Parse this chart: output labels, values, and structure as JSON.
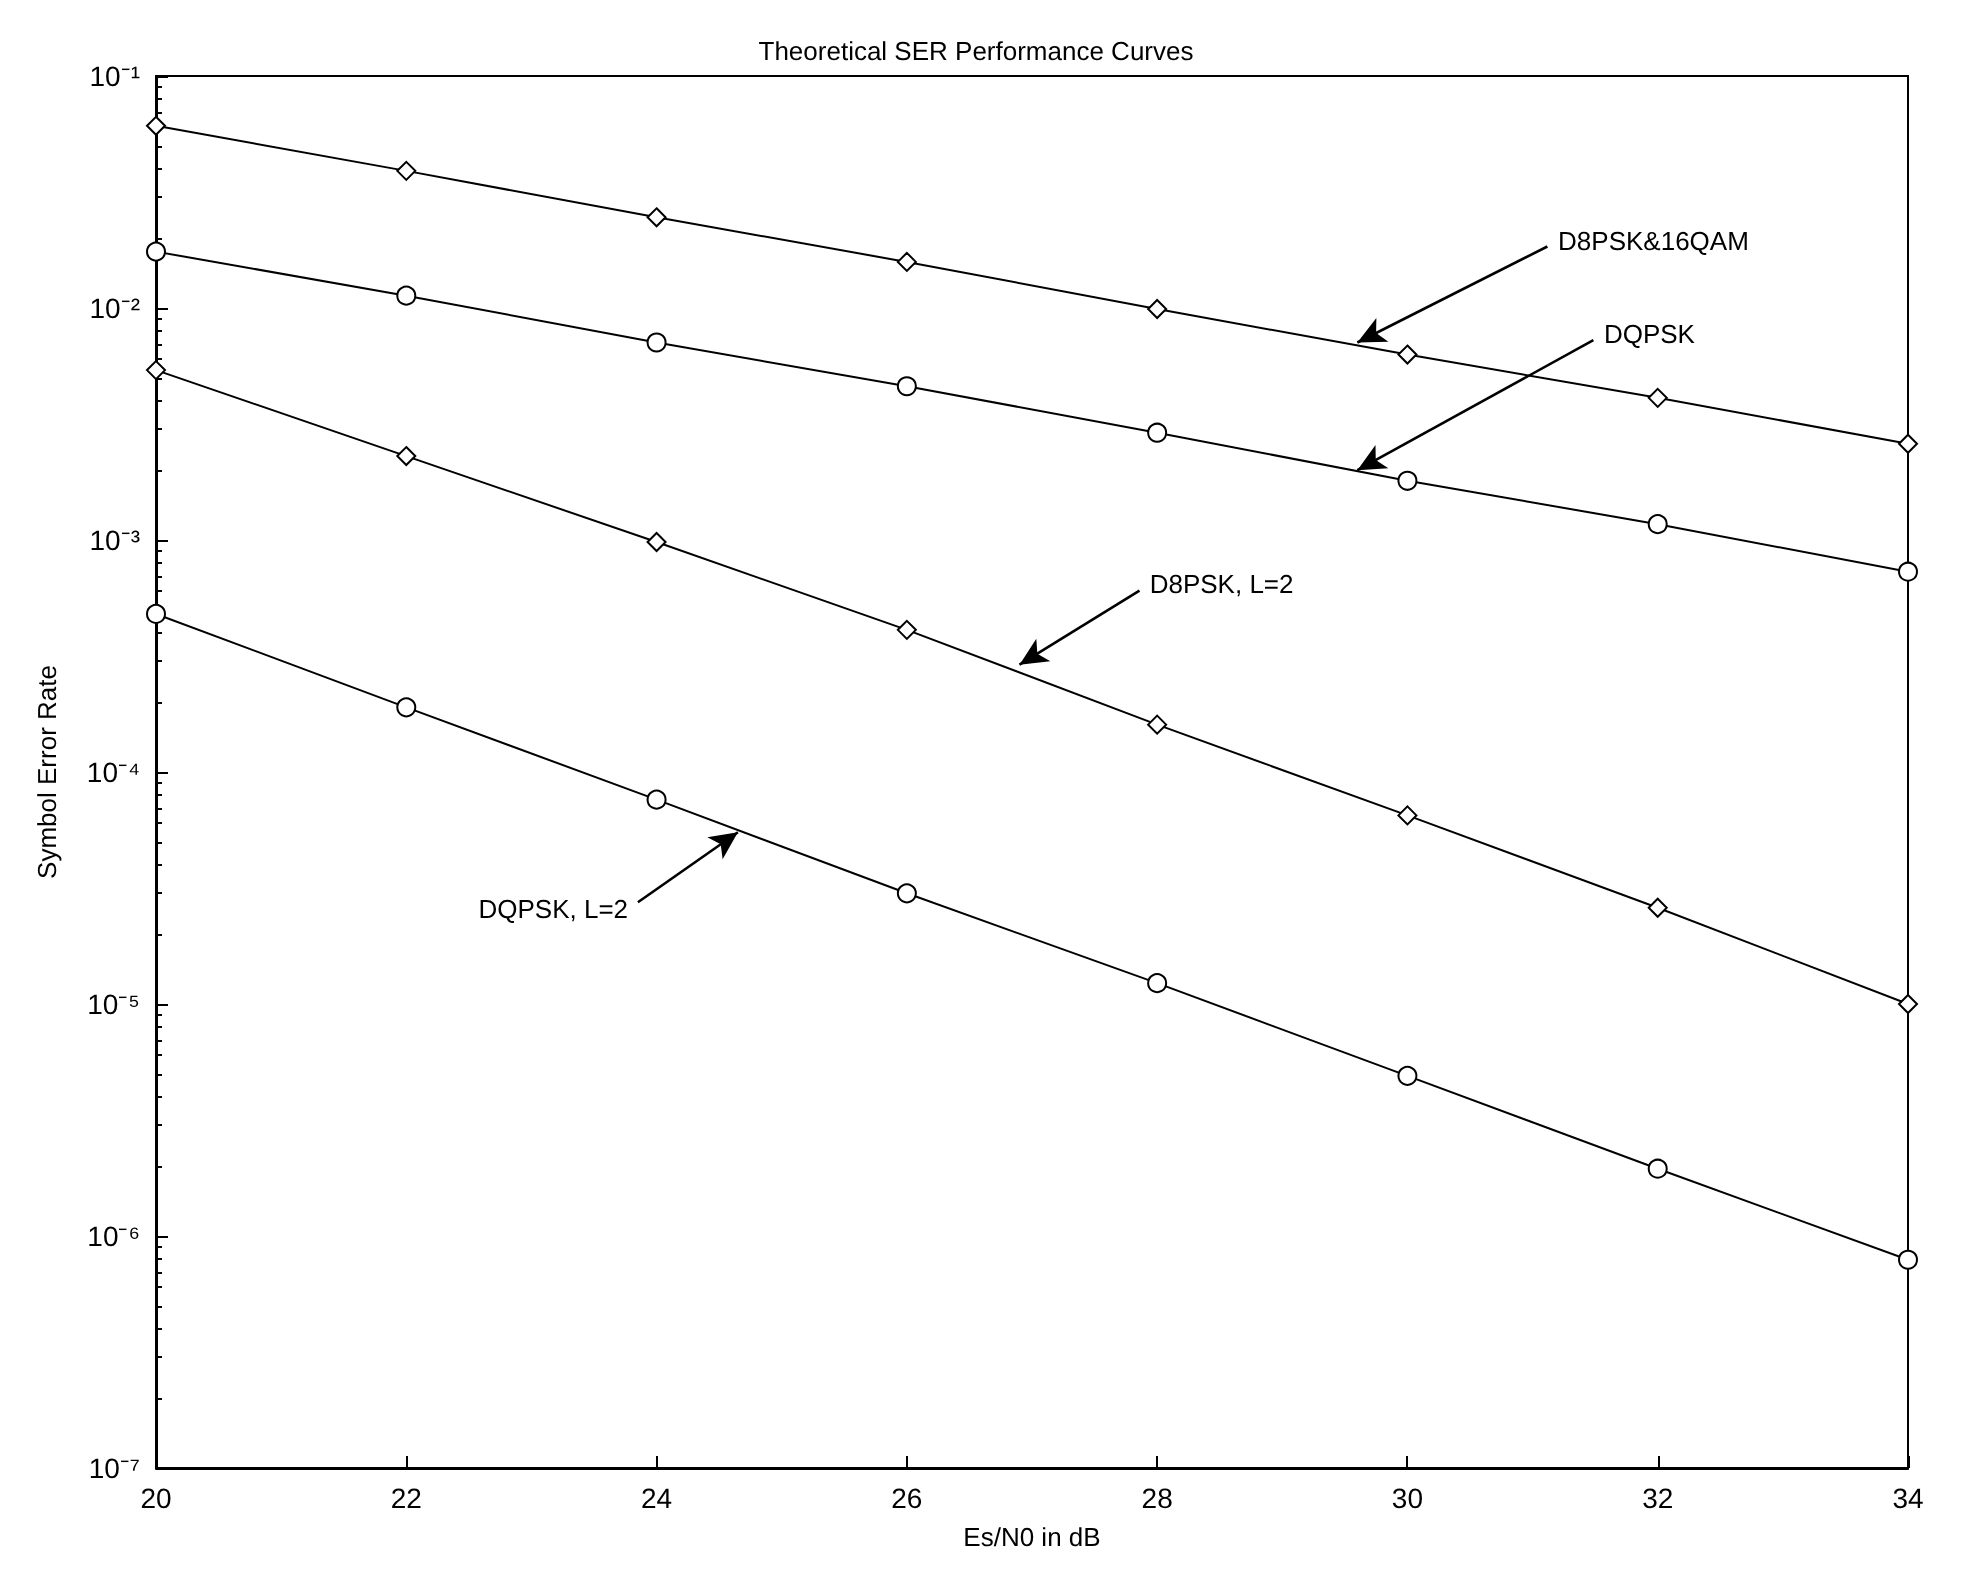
{
  "chart_data": {
    "type": "line",
    "title": "Theoretical SER Performance Curves",
    "xlabel": "Es/N0 in dB",
    "ylabel": "Symbol Error Rate",
    "x": [
      20,
      22,
      24,
      26,
      28,
      30,
      32,
      34
    ],
    "series": [
      {
        "color": "#000000",
        "marker": "diamond",
        "values": [
          0.061,
          0.039,
          0.0246,
          0.0158,
          0.0099,
          0.0063,
          0.0041,
          0.0026
        ]
      },
      {
        "color": "#000000",
        "marker": "circle",
        "values": [
          0.0175,
          0.0113,
          0.0071,
          0.0046,
          0.0029,
          0.0018,
          0.00117,
          0.00073
        ]
      },
      {
        "color": "#000000",
        "marker": "diamond",
        "values": [
          0.0054,
          0.0023,
          0.00098,
          0.00041,
          0.00016,
          6.5e-05,
          2.6e-05,
          1e-05
        ]
      },
      {
        "color": "#000000",
        "marker": "circle",
        "values": [
          0.00048,
          0.00019,
          7.6e-05,
          3e-05,
          1.23e-05,
          4.9e-06,
          1.95e-06,
          7.9e-07
        ]
      }
    ],
    "log": "y",
    "xlim": [
      20,
      34
    ],
    "xticks": [
      20,
      22,
      24,
      26,
      28,
      30,
      32,
      34
    ],
    "ylim": [
      1e-07,
      0.1
    ],
    "yticks": [
      {
        "value": 1e-07,
        "label": "10⁻⁷"
      },
      {
        "value": 1e-06,
        "label": "10⁻⁶"
      },
      {
        "value": 1e-05,
        "label": "10⁻⁵"
      },
      {
        "value": 0.0001,
        "label": "10⁻⁴"
      },
      {
        "value": 0.001,
        "label": "10⁻³"
      },
      {
        "value": 0.01,
        "label": "10⁻²"
      },
      {
        "value": 0.1,
        "label": "10⁻¹"
      }
    ],
    "grid": false,
    "line_style": "solid",
    "annotations": [
      {
        "text": "D8PSK&16QAM",
        "x": 29.6,
        "y": 0.0071
      },
      {
        "text": "DQPSK",
        "x": 29.6,
        "y": 0.002
      },
      {
        "text": "D8PSK, L=2",
        "x": 26.9,
        "y": 0.00029
      },
      {
        "text": "DQPSK, L=2",
        "x": 24.65,
        "y": 5.5e-05
      }
    ]
  }
}
